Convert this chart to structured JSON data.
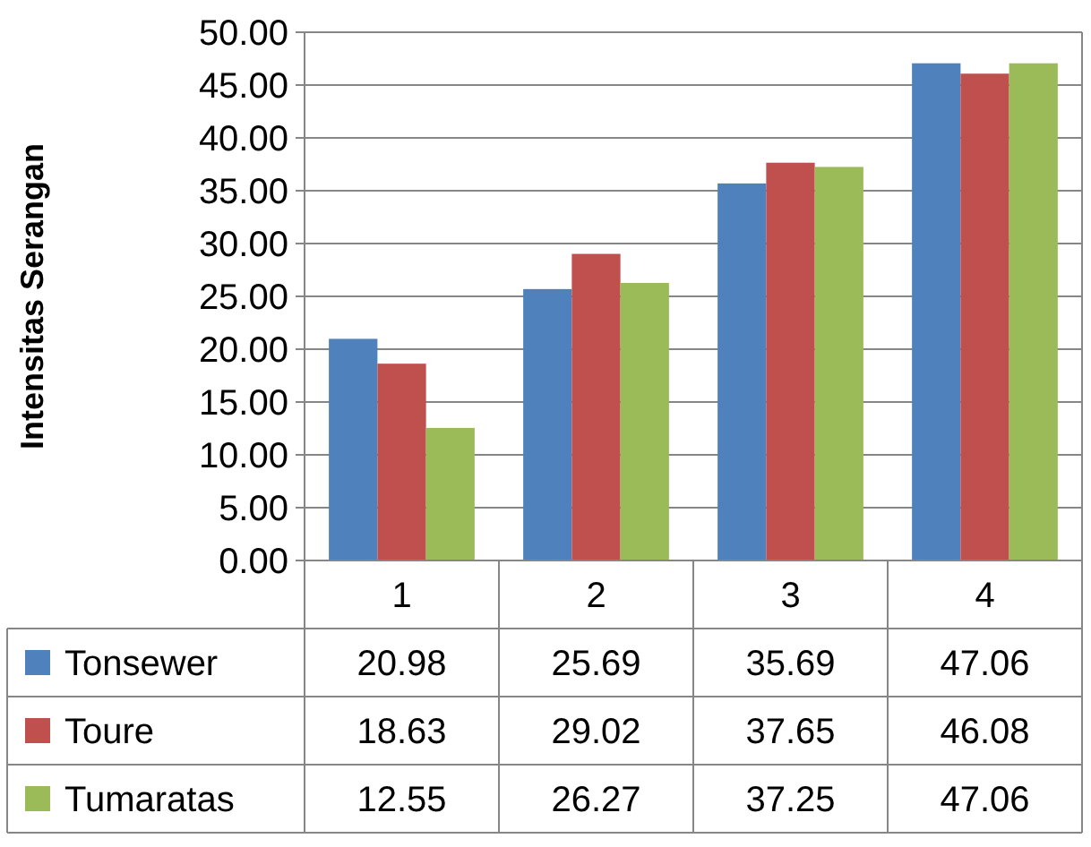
{
  "chart_data": {
    "type": "bar",
    "ylabel": "Intensitas Serangan",
    "categories": [
      "1",
      "2",
      "3",
      "4"
    ],
    "series": [
      {
        "name": "Tonsewer",
        "color": "#4f81bd",
        "values": [
          20.98,
          25.69,
          35.69,
          47.06
        ]
      },
      {
        "name": "Toure",
        "color": "#c0504d",
        "values": [
          18.63,
          29.02,
          37.65,
          46.08
        ]
      },
      {
        "name": "Tumaratas",
        "color": "#9bbb59",
        "values": [
          12.55,
          26.27,
          37.25,
          47.06
        ]
      }
    ],
    "ylim": [
      0,
      50
    ],
    "yticks": [
      {
        "value": 0,
        "label": "0.00"
      },
      {
        "value": 5,
        "label": "5.00"
      },
      {
        "value": 10,
        "label": "10.00"
      },
      {
        "value": 15,
        "label": "15.00"
      },
      {
        "value": 20,
        "label": "20.00"
      },
      {
        "value": 25,
        "label": "25.00"
      },
      {
        "value": 30,
        "label": "30.00"
      },
      {
        "value": 35,
        "label": "35.00"
      },
      {
        "value": 40,
        "label": "40.00"
      },
      {
        "value": 45,
        "label": "45.00"
      },
      {
        "value": 50,
        "label": "50.00"
      }
    ],
    "grid": "y",
    "legend": "bottom",
    "data_labels": true
  }
}
